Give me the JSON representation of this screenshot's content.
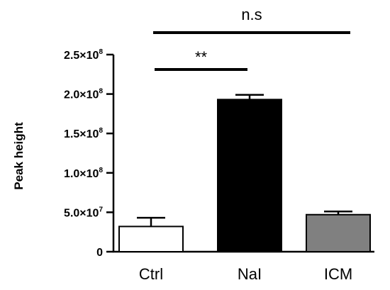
{
  "chart_data": {
    "type": "bar",
    "categories": [
      "Ctrl",
      "NaI",
      "ICM"
    ],
    "values": [
      32000000,
      193000000,
      47000000
    ],
    "errors": [
      11000000,
      6000000,
      4000000
    ],
    "colors": [
      "#ffffff",
      "#000000",
      "#808080"
    ],
    "xlabel": "",
    "ylabel": "Peak height",
    "ylim": [
      0,
      250000000
    ],
    "yticks": [
      {
        "value": 0,
        "mantissa": "0",
        "exponent": ""
      },
      {
        "value": 50000000,
        "mantissa": "5.0×10",
        "exponent": "7"
      },
      {
        "value": 100000000,
        "mantissa": "1.0×10",
        "exponent": "8"
      },
      {
        "value": 150000000,
        "mantissa": "1.5×10",
        "exponent": "8"
      },
      {
        "value": 200000000,
        "mantissa": "2.0×10",
        "exponent": "8"
      },
      {
        "value": 250000000,
        "mantissa": "2.5×10",
        "exponent": "8"
      }
    ],
    "grid": false,
    "significance": [
      {
        "from": 0,
        "to": 1,
        "label": "**"
      },
      {
        "from": 0,
        "to": 2,
        "label": "n.s"
      }
    ]
  }
}
